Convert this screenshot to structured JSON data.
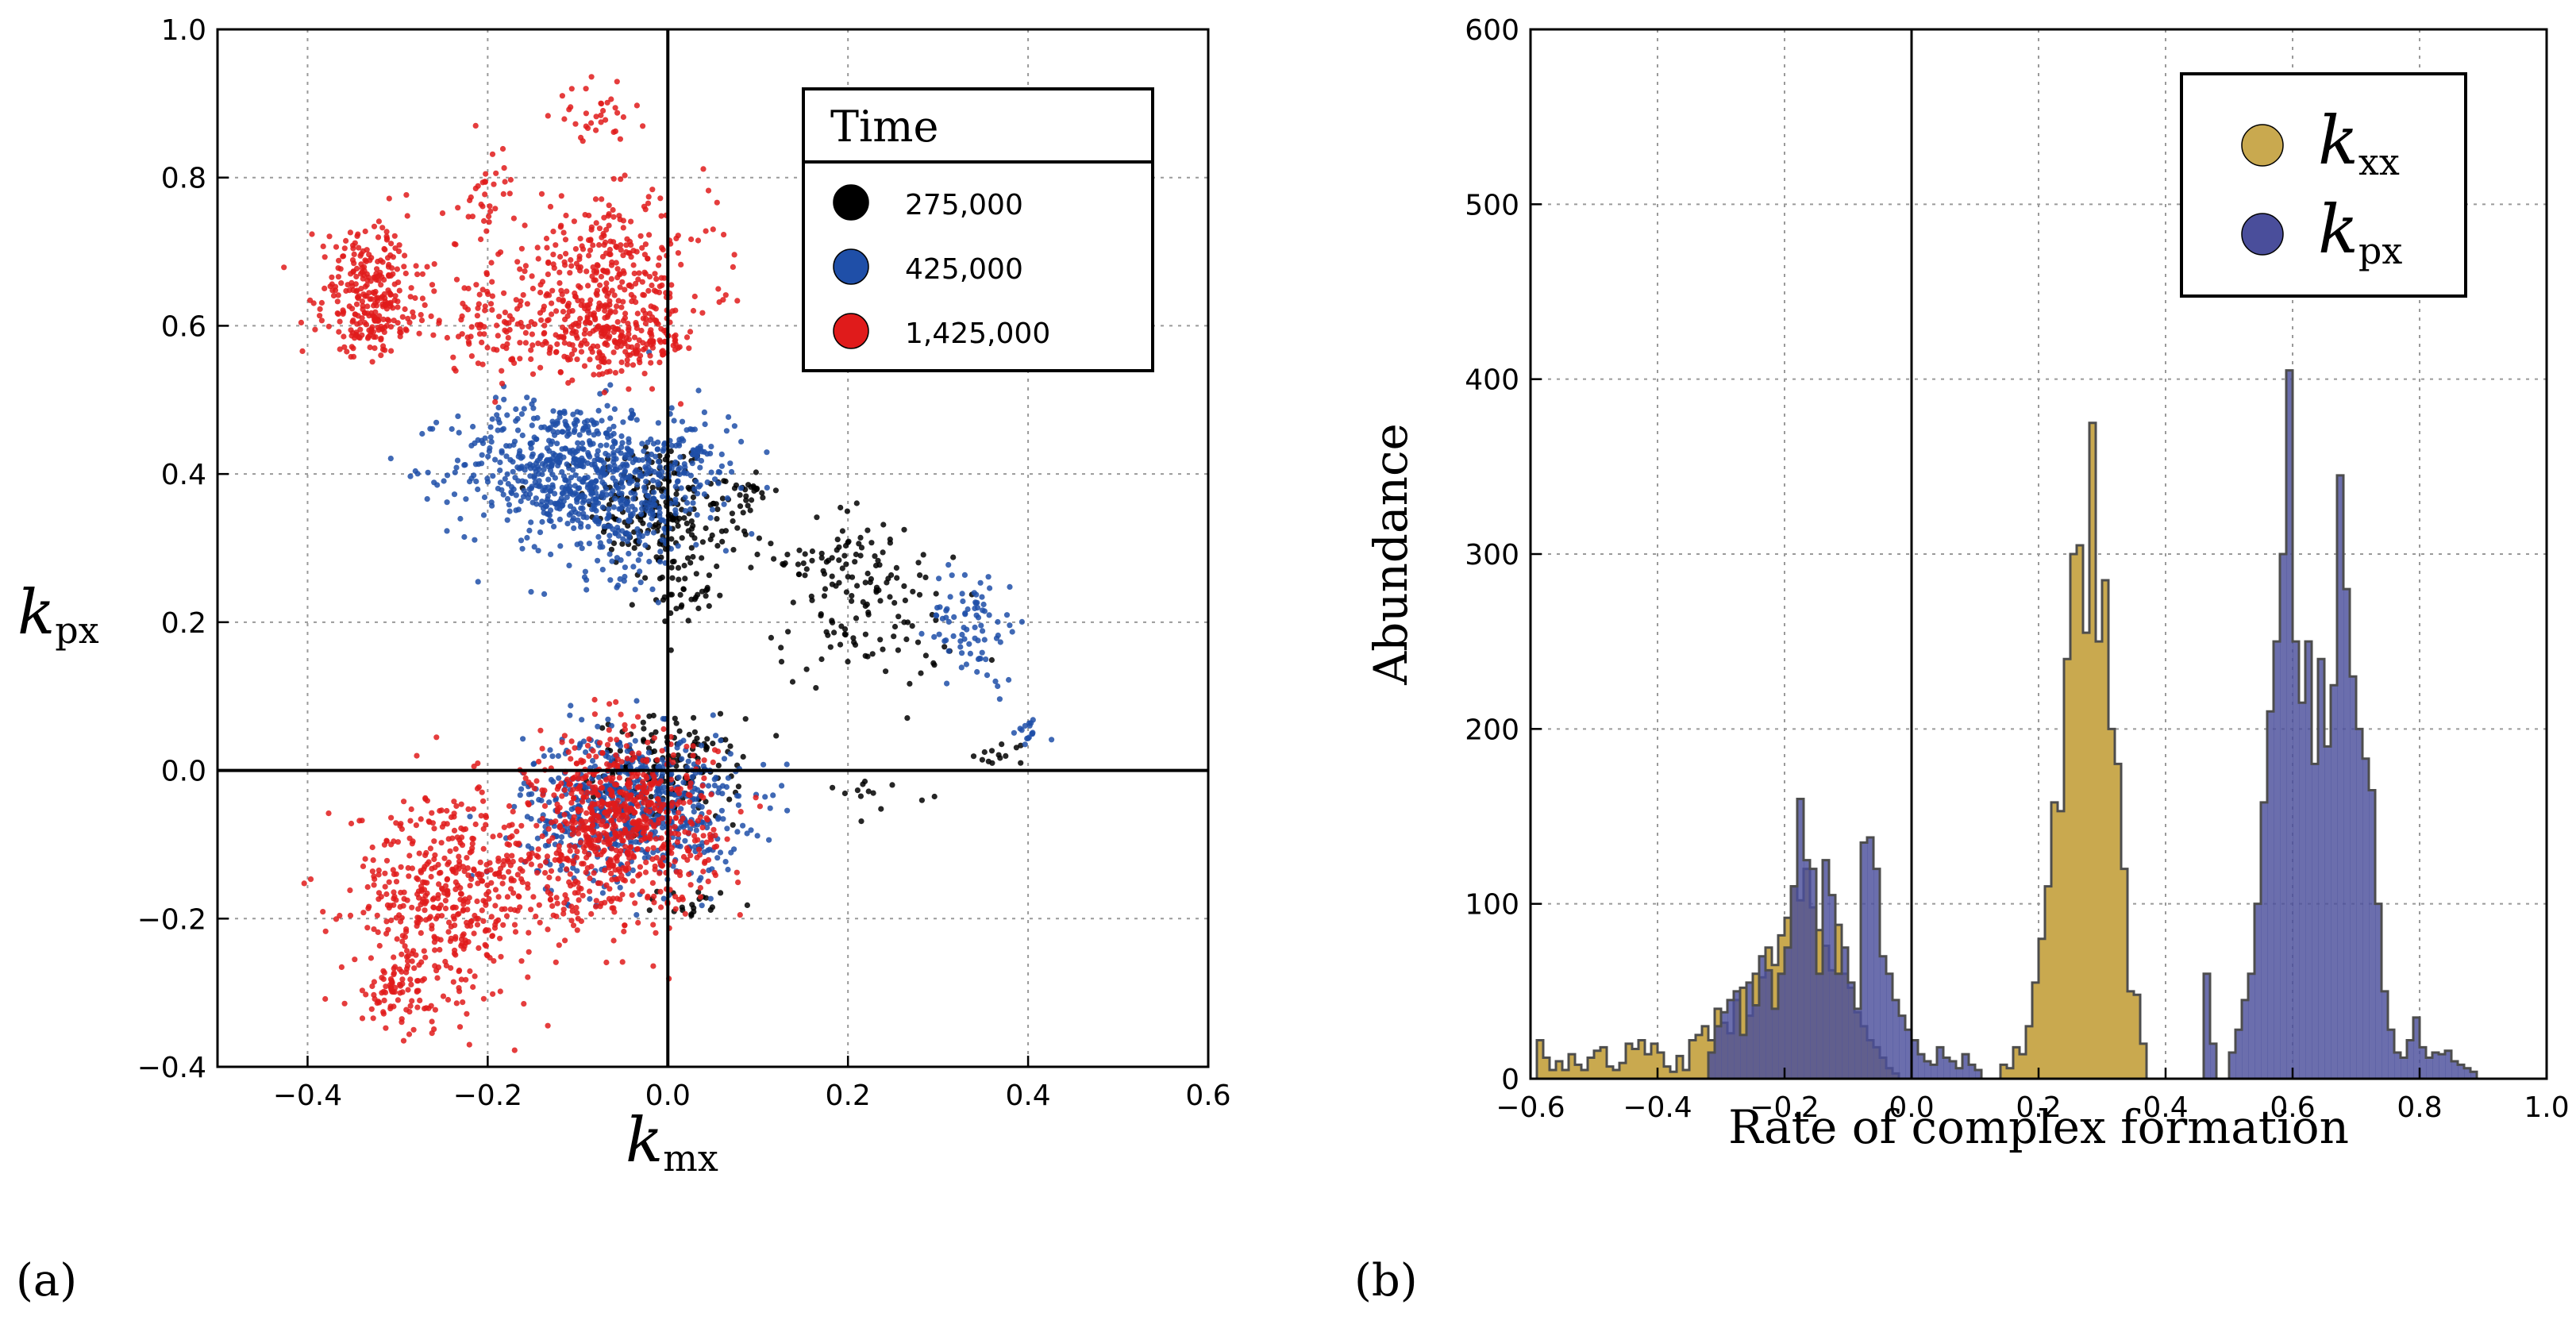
{
  "chart_data": [
    {
      "panel_label": "(a)",
      "type": "scatter",
      "xlabel_main": "k",
      "xlabel_sub": "mx",
      "ylabel_main": "k",
      "ylabel_sub": "px",
      "xlim": [
        -0.5,
        0.6
      ],
      "ylim": [
        -0.4,
        1.0
      ],
      "xticks": [
        -0.4,
        -0.2,
        0.0,
        0.2,
        0.4,
        0.6
      ],
      "xtick_labels": [
        "−0.4",
        "−0.2",
        "0.0",
        "0.2",
        "0.4",
        "0.6"
      ],
      "yticks": [
        -0.4,
        -0.2,
        0.0,
        0.2,
        0.4,
        0.6,
        0.8,
        1.0
      ],
      "ytick_labels": [
        "−0.4",
        "−0.2",
        "0.0",
        "0.2",
        "0.4",
        "0.6",
        "0.8",
        "1.0"
      ],
      "grid": true,
      "zero_lines": true,
      "legend": {
        "title": "Time",
        "placement": "top-right"
      },
      "series": [
        {
          "name": "275,000",
          "color": "#000000",
          "count": 650,
          "clusters": [
            {
              "cx": -0.02,
              "cy": 0.36,
              "sx": 0.035,
              "sy": 0.045,
              "w": 0.26
            },
            {
              "cx": 0.05,
              "cy": 0.33,
              "sx": 0.03,
              "sy": 0.04,
              "w": 0.08
            },
            {
              "cx": 0.01,
              "cy": 0.24,
              "sx": 0.02,
              "sy": 0.02,
              "w": 0.06
            },
            {
              "cx": 0.2,
              "cy": 0.29,
              "sx": 0.04,
              "sy": 0.035,
              "w": 0.1
            },
            {
              "cx": 0.22,
              "cy": 0.2,
              "sx": 0.05,
              "sy": 0.045,
              "w": 0.14
            },
            {
              "cx": 0.0,
              "cy": 0.0,
              "sx": 0.04,
              "sy": 0.035,
              "w": 0.26
            },
            {
              "cx": 0.09,
              "cy": 0.38,
              "sx": 0.01,
              "sy": 0.015,
              "w": 0.03
            },
            {
              "cx": 0.37,
              "cy": 0.02,
              "sx": 0.015,
              "sy": 0.01,
              "w": 0.02
            },
            {
              "cx": 0.23,
              "cy": -0.03,
              "sx": 0.03,
              "sy": 0.01,
              "w": 0.02
            },
            {
              "cx": 0.03,
              "cy": -0.18,
              "sx": 0.02,
              "sy": 0.01,
              "w": 0.03
            }
          ]
        },
        {
          "name": "425,000",
          "color": "#1f4fa8",
          "count": 1600,
          "clusters": [
            {
              "cx": -0.12,
              "cy": 0.41,
              "sx": 0.06,
              "sy": 0.045,
              "w": 0.3
            },
            {
              "cx": -0.05,
              "cy": 0.36,
              "sx": 0.05,
              "sy": 0.05,
              "w": 0.16
            },
            {
              "cx": 0.01,
              "cy": 0.42,
              "sx": 0.04,
              "sy": 0.035,
              "w": 0.06
            },
            {
              "cx": -0.04,
              "cy": -0.05,
              "sx": 0.06,
              "sy": 0.05,
              "w": 0.4
            },
            {
              "cx": 0.34,
              "cy": 0.2,
              "sx": 0.025,
              "sy": 0.04,
              "w": 0.05
            },
            {
              "cx": 0.4,
              "cy": 0.05,
              "sx": 0.01,
              "sy": 0.01,
              "w": 0.01
            }
          ]
        },
        {
          "name": "1,425,000",
          "color": "#e01b1b",
          "count": 2300,
          "clusters": [
            {
              "cx": -0.33,
              "cy": 0.66,
              "sx": 0.03,
              "sy": 0.04,
              "w": 0.09
            },
            {
              "cx": -0.33,
              "cy": 0.6,
              "sx": 0.025,
              "sy": 0.02,
              "w": 0.04
            },
            {
              "cx": -0.07,
              "cy": 0.67,
              "sx": 0.06,
              "sy": 0.05,
              "w": 0.14
            },
            {
              "cx": -0.06,
              "cy": 0.58,
              "sx": 0.045,
              "sy": 0.025,
              "w": 0.1
            },
            {
              "cx": -0.2,
              "cy": 0.6,
              "sx": 0.04,
              "sy": 0.03,
              "w": 0.04
            },
            {
              "cx": -0.08,
              "cy": 0.88,
              "sx": 0.02,
              "sy": 0.02,
              "w": 0.015
            },
            {
              "cx": -0.2,
              "cy": 0.78,
              "sx": 0.015,
              "sy": 0.03,
              "w": 0.015
            },
            {
              "cx": -0.05,
              "cy": -0.07,
              "sx": 0.05,
              "sy": 0.06,
              "w": 0.3
            },
            {
              "cx": -0.25,
              "cy": -0.17,
              "sx": 0.05,
              "sy": 0.07,
              "w": 0.2
            },
            {
              "cx": -0.3,
              "cy": -0.3,
              "sx": 0.02,
              "sy": 0.02,
              "w": 0.03
            },
            {
              "cx": -0.13,
              "cy": -0.15,
              "sx": 0.04,
              "sy": 0.04,
              "w": 0.04
            }
          ]
        }
      ]
    },
    {
      "panel_label": "(b)",
      "type": "histogram",
      "xlabel": "Rate of complex formation",
      "ylabel": "Abundance",
      "xlim": [
        -0.6,
        1.0
      ],
      "ylim": [
        0,
        600
      ],
      "xticks": [
        -0.6,
        -0.4,
        -0.2,
        0.0,
        0.2,
        0.4,
        0.6,
        0.8,
        1.0
      ],
      "xtick_labels": [
        "−0.6",
        "−0.4",
        "−0.2",
        "0.0",
        "0.2",
        "0.4",
        "0.6",
        "0.8",
        "1.0"
      ],
      "yticks": [
        0,
        100,
        200,
        300,
        400,
        500,
        600
      ],
      "ytick_labels": [
        "0",
        "100",
        "200",
        "300",
        "400",
        "500",
        "600"
      ],
      "grid": true,
      "zero_line": true,
      "bin_width": 0.01,
      "legend": {
        "placement": "top-right"
      },
      "series": [
        {
          "name_main": "k",
          "name_sub": "xx",
          "color": "#c9a94f",
          "bins": [
            {
              "x": -0.59,
              "v": 22
            },
            {
              "x": -0.58,
              "v": 12
            },
            {
              "x": -0.57,
              "v": 5
            },
            {
              "x": -0.56,
              "v": 10
            },
            {
              "x": -0.55,
              "v": 5
            },
            {
              "x": -0.54,
              "v": 14
            },
            {
              "x": -0.53,
              "v": 8
            },
            {
              "x": -0.52,
              "v": 5
            },
            {
              "x": -0.51,
              "v": 12
            },
            {
              "x": -0.5,
              "v": 16
            },
            {
              "x": -0.49,
              "v": 18
            },
            {
              "x": -0.48,
              "v": 7
            },
            {
              "x": -0.47,
              "v": 5
            },
            {
              "x": -0.46,
              "v": 9
            },
            {
              "x": -0.45,
              "v": 20
            },
            {
              "x": -0.44,
              "v": 17
            },
            {
              "x": -0.43,
              "v": 22
            },
            {
              "x": -0.42,
              "v": 14
            },
            {
              "x": -0.41,
              "v": 20
            },
            {
              "x": -0.4,
              "v": 15
            },
            {
              "x": -0.39,
              "v": 7
            },
            {
              "x": -0.38,
              "v": 4
            },
            {
              "x": -0.37,
              "v": 13
            },
            {
              "x": -0.36,
              "v": 5
            },
            {
              "x": -0.35,
              "v": 22
            },
            {
              "x": -0.34,
              "v": 25
            },
            {
              "x": -0.33,
              "v": 30
            },
            {
              "x": -0.32,
              "v": 22
            },
            {
              "x": -0.31,
              "v": 40
            },
            {
              "x": -0.3,
              "v": 32
            },
            {
              "x": -0.29,
              "v": 26
            },
            {
              "x": -0.28,
              "v": 45
            },
            {
              "x": -0.27,
              "v": 52
            },
            {
              "x": -0.26,
              "v": 36
            },
            {
              "x": -0.25,
              "v": 60
            },
            {
              "x": -0.24,
              "v": 58
            },
            {
              "x": -0.23,
              "v": 75
            },
            {
              "x": -0.22,
              "v": 65
            },
            {
              "x": -0.21,
              "v": 82
            },
            {
              "x": -0.2,
              "v": 92
            },
            {
              "x": -0.19,
              "v": 110
            },
            {
              "x": -0.18,
              "v": 102
            },
            {
              "x": -0.17,
              "v": 120
            },
            {
              "x": -0.16,
              "v": 98
            },
            {
              "x": -0.15,
              "v": 85
            },
            {
              "x": -0.14,
              "v": 76
            },
            {
              "x": -0.13,
              "v": 62
            },
            {
              "x": -0.12,
              "v": 88
            },
            {
              "x": -0.11,
              "v": 60
            },
            {
              "x": -0.1,
              "v": 52
            },
            {
              "x": -0.09,
              "v": 38
            },
            {
              "x": -0.08,
              "v": 30
            },
            {
              "x": -0.07,
              "v": 22
            },
            {
              "x": -0.06,
              "v": 18
            },
            {
              "x": -0.05,
              "v": 12
            },
            {
              "x": -0.04,
              "v": 6
            },
            {
              "x": -0.03,
              "v": 3
            },
            {
              "x": 0.14,
              "v": 8
            },
            {
              "x": 0.15,
              "v": 6
            },
            {
              "x": 0.16,
              "v": 18
            },
            {
              "x": 0.17,
              "v": 14
            },
            {
              "x": 0.18,
              "v": 30
            },
            {
              "x": 0.19,
              "v": 55
            },
            {
              "x": 0.2,
              "v": 80
            },
            {
              "x": 0.21,
              "v": 110
            },
            {
              "x": 0.22,
              "v": 158
            },
            {
              "x": 0.23,
              "v": 153
            },
            {
              "x": 0.24,
              "v": 240
            },
            {
              "x": 0.25,
              "v": 300
            },
            {
              "x": 0.26,
              "v": 305
            },
            {
              "x": 0.27,
              "v": 255
            },
            {
              "x": 0.28,
              "v": 375
            },
            {
              "x": 0.29,
              "v": 250
            },
            {
              "x": 0.3,
              "v": 285
            },
            {
              "x": 0.31,
              "v": 200
            },
            {
              "x": 0.32,
              "v": 180
            },
            {
              "x": 0.33,
              "v": 120
            },
            {
              "x": 0.34,
              "v": 50
            },
            {
              "x": 0.35,
              "v": 48
            },
            {
              "x": 0.36,
              "v": 20
            }
          ]
        },
        {
          "name_main": "k",
          "name_sub": "px",
          "color": "#4a4e9b",
          "bins": [
            {
              "x": -0.32,
              "v": 15
            },
            {
              "x": -0.31,
              "v": 30
            },
            {
              "x": -0.3,
              "v": 38
            },
            {
              "x": -0.29,
              "v": 45
            },
            {
              "x": -0.28,
              "v": 50
            },
            {
              "x": -0.27,
              "v": 25
            },
            {
              "x": -0.26,
              "v": 55
            },
            {
              "x": -0.25,
              "v": 42
            },
            {
              "x": -0.24,
              "v": 70
            },
            {
              "x": -0.23,
              "v": 62
            },
            {
              "x": -0.22,
              "v": 40
            },
            {
              "x": -0.21,
              "v": 60
            },
            {
              "x": -0.2,
              "v": 75
            },
            {
              "x": -0.19,
              "v": 110
            },
            {
              "x": -0.18,
              "v": 160
            },
            {
              "x": -0.17,
              "v": 125
            },
            {
              "x": -0.16,
              "v": 120
            },
            {
              "x": -0.15,
              "v": 60
            },
            {
              "x": -0.14,
              "v": 125
            },
            {
              "x": -0.13,
              "v": 105
            },
            {
              "x": -0.12,
              "v": 60
            },
            {
              "x": -0.11,
              "v": 75
            },
            {
              "x": -0.1,
              "v": 55
            },
            {
              "x": -0.09,
              "v": 40
            },
            {
              "x": -0.08,
              "v": 135
            },
            {
              "x": -0.07,
              "v": 138
            },
            {
              "x": -0.06,
              "v": 120
            },
            {
              "x": -0.05,
              "v": 70
            },
            {
              "x": -0.04,
              "v": 60
            },
            {
              "x": -0.03,
              "v": 45
            },
            {
              "x": -0.02,
              "v": 36
            },
            {
              "x": -0.01,
              "v": 28
            },
            {
              "x": 0.0,
              "v": 22
            },
            {
              "x": 0.01,
              "v": 14
            },
            {
              "x": 0.02,
              "v": 10
            },
            {
              "x": 0.03,
              "v": 8
            },
            {
              "x": 0.04,
              "v": 18
            },
            {
              "x": 0.05,
              "v": 12
            },
            {
              "x": 0.06,
              "v": 10
            },
            {
              "x": 0.07,
              "v": 6
            },
            {
              "x": 0.08,
              "v": 14
            },
            {
              "x": 0.09,
              "v": 8
            },
            {
              "x": 0.1,
              "v": 5
            },
            {
              "x": 0.46,
              "v": 60
            },
            {
              "x": 0.47,
              "v": 20
            },
            {
              "x": 0.5,
              "v": 15
            },
            {
              "x": 0.51,
              "v": 28
            },
            {
              "x": 0.52,
              "v": 45
            },
            {
              "x": 0.53,
              "v": 60
            },
            {
              "x": 0.54,
              "v": 100
            },
            {
              "x": 0.55,
              "v": 158
            },
            {
              "x": 0.56,
              "v": 210
            },
            {
              "x": 0.57,
              "v": 250
            },
            {
              "x": 0.58,
              "v": 300
            },
            {
              "x": 0.59,
              "v": 405
            },
            {
              "x": 0.6,
              "v": 250
            },
            {
              "x": 0.61,
              "v": 215
            },
            {
              "x": 0.62,
              "v": 250
            },
            {
              "x": 0.63,
              "v": 180
            },
            {
              "x": 0.64,
              "v": 240
            },
            {
              "x": 0.65,
              "v": 190
            },
            {
              "x": 0.66,
              "v": 225
            },
            {
              "x": 0.67,
              "v": 345
            },
            {
              "x": 0.68,
              "v": 280
            },
            {
              "x": 0.69,
              "v": 230
            },
            {
              "x": 0.7,
              "v": 200
            },
            {
              "x": 0.71,
              "v": 183
            },
            {
              "x": 0.72,
              "v": 165
            },
            {
              "x": 0.73,
              "v": 100
            },
            {
              "x": 0.74,
              "v": 50
            },
            {
              "x": 0.75,
              "v": 28
            },
            {
              "x": 0.76,
              "v": 15
            },
            {
              "x": 0.77,
              "v": 12
            },
            {
              "x": 0.78,
              "v": 22
            },
            {
              "x": 0.79,
              "v": 35
            },
            {
              "x": 0.8,
              "v": 18
            },
            {
              "x": 0.81,
              "v": 12
            },
            {
              "x": 0.82,
              "v": 15
            },
            {
              "x": 0.83,
              "v": 14
            },
            {
              "x": 0.84,
              "v": 16
            },
            {
              "x": 0.85,
              "v": 10
            },
            {
              "x": 0.86,
              "v": 8
            },
            {
              "x": 0.87,
              "v": 6
            },
            {
              "x": 0.88,
              "v": 4
            }
          ]
        }
      ]
    }
  ]
}
